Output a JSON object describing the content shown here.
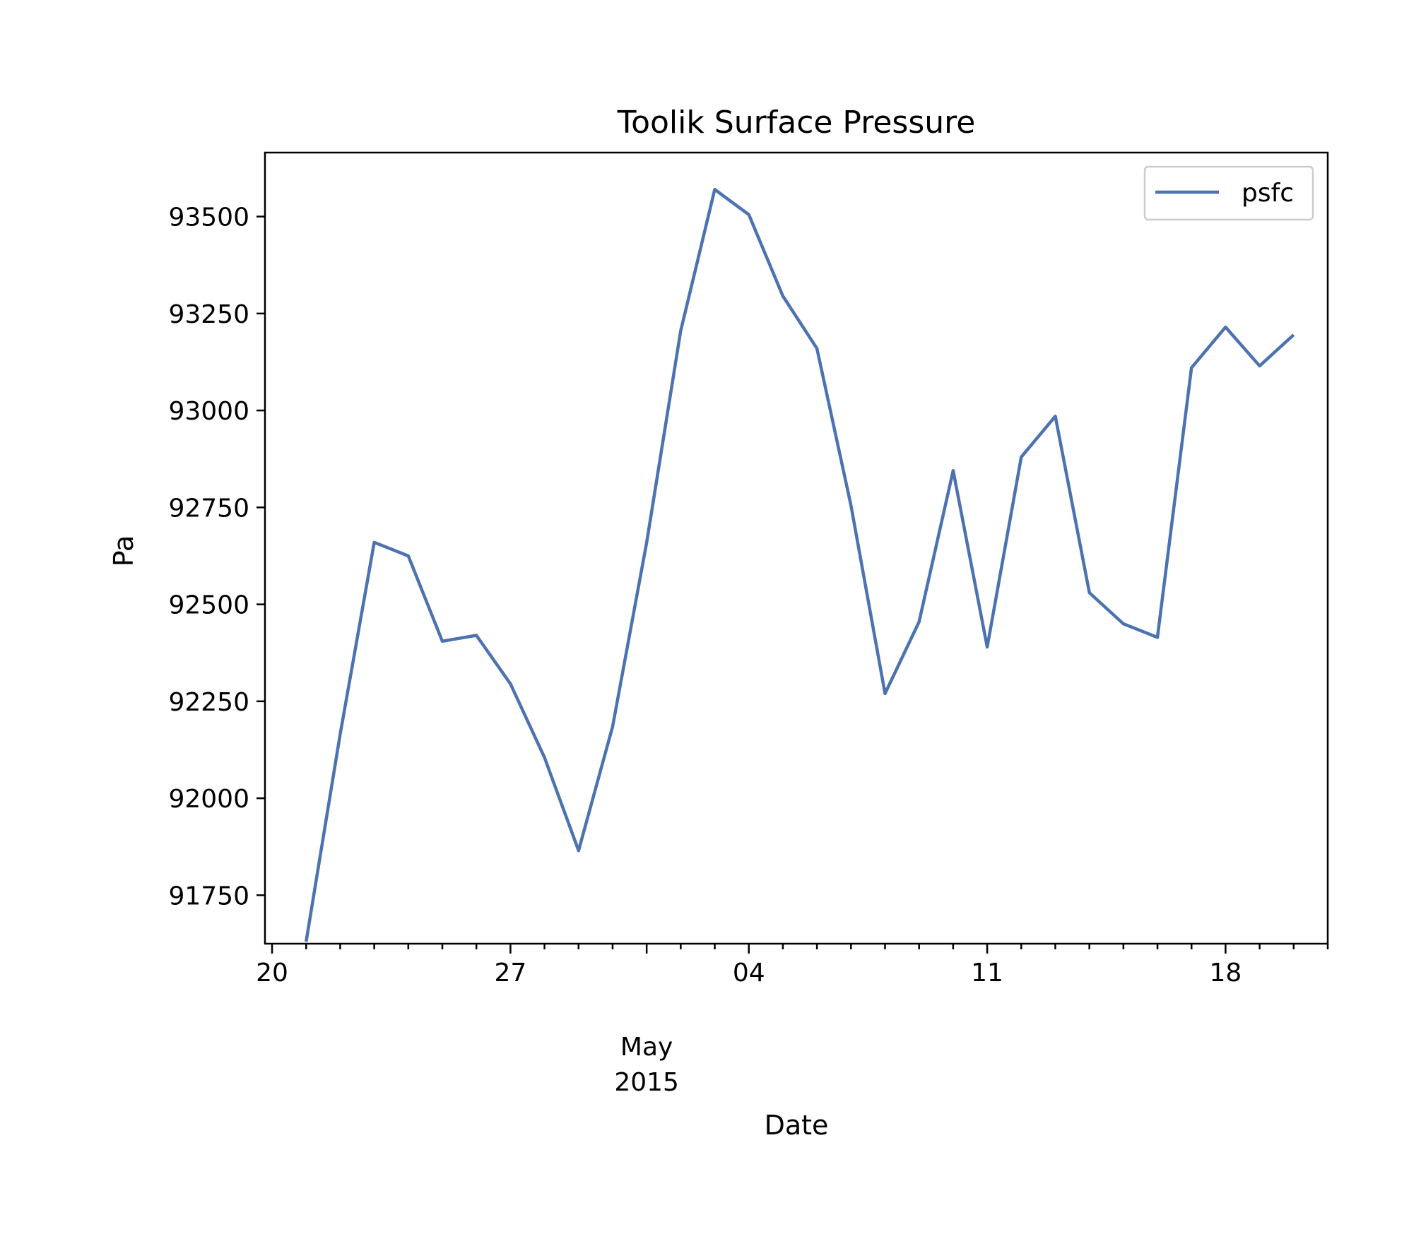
{
  "chart_data": {
    "type": "line",
    "title": "Toolik Surface Pressure",
    "xlabel": "Date",
    "ylabel": "Pa",
    "x_tick_labels": [
      {
        "date": "2015-04-20",
        "label": "20"
      },
      {
        "date": "2015-04-27",
        "label": "27"
      },
      {
        "date": "2015-05-04",
        "label": "04"
      },
      {
        "date": "2015-05-11",
        "label": "11"
      },
      {
        "date": "2015-05-18",
        "label": "18"
      }
    ],
    "x_secondary_label": {
      "date": "2015-05-01",
      "lines": [
        "May",
        "2015"
      ]
    },
    "xlim": [
      "2015-04-19T19:00",
      "2015-05-21T00:00"
    ],
    "ylim": [
      91625,
      93665
    ],
    "yticks": [
      91750,
      92000,
      92250,
      92500,
      92750,
      93000,
      93250,
      93500
    ],
    "grid": false,
    "legend_position": "top-right",
    "colors": {
      "line": "#4c72b0",
      "axes": "#000000"
    },
    "series": [
      {
        "name": "psfc",
        "x": [
          "2015-04-21",
          "2015-04-22",
          "2015-04-23",
          "2015-04-24",
          "2015-04-25",
          "2015-04-26",
          "2015-04-27",
          "2015-04-28",
          "2015-04-29",
          "2015-04-30",
          "2015-05-01",
          "2015-05-02",
          "2015-05-03",
          "2015-05-04",
          "2015-05-05",
          "2015-05-06",
          "2015-05-07",
          "2015-05-08",
          "2015-05-09",
          "2015-05-10",
          "2015-05-11",
          "2015-05-12",
          "2015-05-13",
          "2015-05-14",
          "2015-05-15",
          "2015-05-16",
          "2015-05-17",
          "2015-05-18",
          "2015-05-19",
          "2015-05-20"
        ],
        "values": [
          91630,
          92165,
          92660,
          92625,
          92405,
          92420,
          92295,
          92105,
          91865,
          92185,
          92660,
          93205,
          93570,
          93505,
          93295,
          93160,
          92755,
          92270,
          92455,
          92845,
          92390,
          92880,
          92985,
          92530,
          92450,
          92415,
          93110,
          93215,
          93115,
          93195
        ]
      }
    ]
  }
}
